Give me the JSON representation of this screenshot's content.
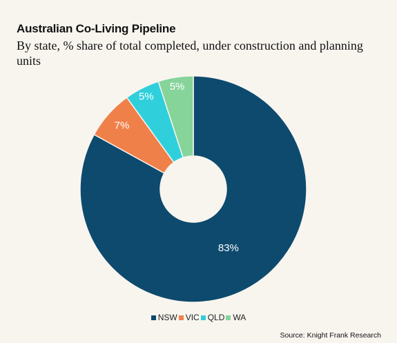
{
  "chart_data": {
    "type": "pie",
    "title": "Australian Co-Living Pipeline",
    "subtitle": "By state, % share of total completed, under construction and planning units",
    "categories": [
      "NSW",
      "VIC",
      "QLD",
      "WA"
    ],
    "values": [
      83,
      7,
      5,
      5
    ],
    "labels": [
      "83%",
      "7%",
      "5%",
      "5%"
    ],
    "colors": [
      "#0d4a6e",
      "#f0804a",
      "#2fd0dc",
      "#86d49a"
    ],
    "donut": true,
    "legend_position": "bottom"
  },
  "source": "Source: Knight Frank Research"
}
